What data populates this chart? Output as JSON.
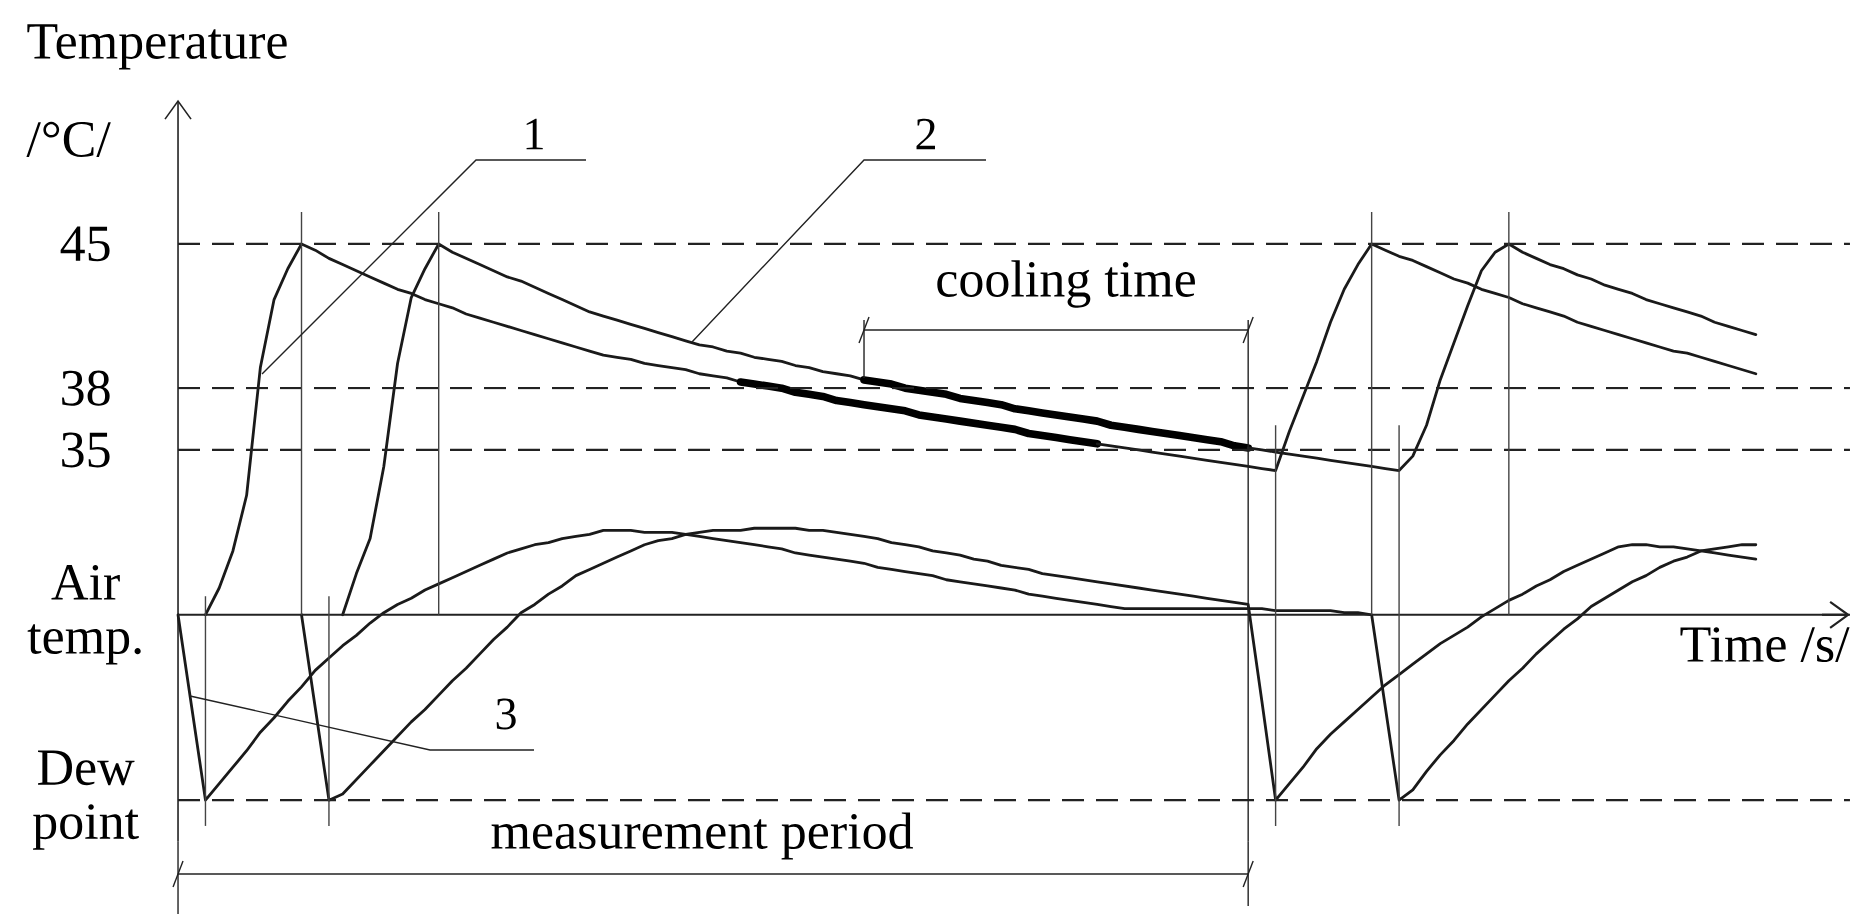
{
  "chart_data": {
    "type": "line",
    "xlabel": "Time /s/",
    "ylabel": "Temperature /°C/",
    "annotations": [
      "1",
      "2",
      "3",
      "cooling time",
      "measurement period"
    ],
    "categories": [
      null,
      null,
      null,
      null,
      null,
      null,
      null,
      null,
      null,
      null,
      null,
      null,
      null,
      null,
      null,
      null,
      null,
      null,
      null,
      null,
      null,
      null,
      null,
      null,
      null,
      null,
      null,
      null,
      null,
      null,
      null,
      null,
      null,
      null,
      null,
      null,
      null,
      null,
      null,
      null,
      null,
      null,
      null,
      null,
      null,
      null,
      null,
      null,
      null,
      null,
      null,
      null,
      null,
      null,
      null,
      null,
      null,
      null,
      null,
      null,
      null,
      null,
      null,
      null,
      null,
      null,
      null,
      null,
      null,
      null,
      null,
      null,
      null,
      null,
      null,
      null,
      null,
      null,
      null,
      null,
      null,
      null,
      null,
      null,
      null,
      null,
      null,
      null,
      null,
      null,
      null,
      null,
      null,
      null,
      null,
      null,
      null,
      null,
      null,
      null,
      null,
      null,
      null,
      null,
      null,
      null,
      null,
      null,
      null,
      null,
      null,
      null,
      null,
      null,
      null,
      null
    ],
    "ylim": [
      16,
      52
    ],
    "yticks": [
      45,
      38,
      35,
      {
        "value": 27,
        "label": "Air temp."
      },
      {
        "value": 18,
        "label": "Dew point"
      }
    ],
    "ref_lines": [
      {
        "axis": "y",
        "value": 45,
        "line_style": "dashed"
      },
      {
        "axis": "y",
        "value": 38,
        "line_style": "dashed"
      },
      {
        "axis": "y",
        "value": 35,
        "line_style": "dashed"
      },
      {
        "axis": "y",
        "value": 27,
        "line_style": "solid"
      },
      {
        "axis": "y",
        "value": 18,
        "line_style": "dashed"
      }
    ],
    "series": [
      {
        "color": "#1a1a1a",
        "values": [
          null,
          null,
          27.0,
          28.3,
          30.1,
          32.8,
          39.0,
          42.3,
          43.8,
          45.0,
          44.7,
          44.3,
          44.0,
          43.7,
          43.4,
          43.1,
          42.8,
          42.6,
          42.3,
          42.1,
          41.9,
          41.6,
          41.4,
          41.2,
          41.0,
          40.8,
          40.6,
          40.4,
          40.2,
          40.0,
          39.8,
          39.6,
          39.5,
          39.4,
          39.2,
          39.1,
          39.0,
          38.9,
          38.7,
          38.6,
          38.5,
          38.3,
          null,
          null,
          null,
          null,
          null,
          null,
          null,
          null,
          null,
          null,
          null,
          null,
          null,
          null,
          null,
          null,
          null,
          null,
          null,
          null,
          null,
          null,
          null,
          null,
          null,
          null,
          null,
          null,
          null,
          null,
          null,
          null,
          null,
          null,
          null,
          null,
          null,
          null,
          null,
          null,
          null,
          null,
          null,
          null,
          null,
          null,
          null,
          null,
          null,
          null,
          null,
          null,
          null,
          null,
          null,
          null,
          null,
          null,
          null,
          null,
          null,
          null,
          null,
          null,
          null,
          null,
          null,
          null,
          null,
          null,
          null,
          null,
          null,
          null
        ]
      },
      {
        "color": "#000000",
        "values": [
          null,
          null,
          null,
          null,
          null,
          null,
          null,
          null,
          null,
          null,
          null,
          null,
          null,
          null,
          null,
          null,
          null,
          null,
          null,
          null,
          null,
          null,
          null,
          null,
          null,
          null,
          null,
          null,
          null,
          null,
          null,
          null,
          null,
          null,
          null,
          null,
          null,
          null,
          null,
          null,
          null,
          38.3,
          38.2,
          38.1,
          38.0,
          37.8,
          37.7,
          37.6,
          37.4,
          37.3,
          37.2,
          37.1,
          37.0,
          36.9,
          36.7,
          36.6,
          36.5,
          36.4,
          36.3,
          36.2,
          36.1,
          36.0,
          35.8,
          35.7,
          35.6,
          35.5,
          35.4,
          35.3,
          null,
          null,
          null,
          null,
          null,
          null,
          null,
          null,
          null,
          null,
          null,
          null,
          null,
          null,
          null,
          null,
          null,
          null,
          null,
          null,
          null,
          null,
          null,
          null,
          null,
          null,
          null,
          null,
          null,
          null,
          null,
          null,
          null,
          null,
          null,
          null,
          null,
          null,
          null,
          null,
          null,
          null,
          null,
          null,
          null,
          null,
          null,
          null
        ]
      },
      {
        "color": "#1a1a1a",
        "values": [
          null,
          null,
          null,
          null,
          null,
          null,
          null,
          null,
          null,
          null,
          null,
          null,
          null,
          null,
          null,
          null,
          null,
          null,
          null,
          null,
          null,
          null,
          null,
          null,
          null,
          null,
          null,
          null,
          null,
          null,
          null,
          null,
          null,
          null,
          null,
          null,
          null,
          null,
          null,
          null,
          null,
          null,
          null,
          null,
          null,
          null,
          null,
          null,
          null,
          null,
          null,
          null,
          null,
          null,
          null,
          null,
          null,
          null,
          null,
          null,
          null,
          null,
          null,
          null,
          null,
          null,
          null,
          35.3,
          35.2,
          35.1,
          35.0,
          34.9,
          34.8,
          34.7,
          34.6,
          34.5,
          34.4,
          34.3,
          34.2,
          34.1,
          34.0,
          35.9,
          37.6,
          39.3,
          41.2,
          42.8,
          44.0,
          45.0,
          44.7,
          44.4,
          44.2,
          43.9,
          43.6,
          43.3,
          43.1,
          42.8,
          42.6,
          42.4,
          42.1,
          41.9,
          41.7,
          41.5,
          41.2,
          41.0,
          40.8,
          40.6,
          40.4,
          40.2,
          40.0,
          39.8,
          39.7,
          39.5,
          39.3,
          39.1,
          38.9,
          38.7
        ]
      },
      {
        "color": "#1a1a1a",
        "values": [
          null,
          null,
          null,
          null,
          null,
          null,
          null,
          null,
          null,
          null,
          null,
          null,
          27.0,
          29.0,
          30.7,
          34.2,
          39.2,
          42.4,
          43.8,
          45.0,
          44.6,
          44.3,
          44.0,
          43.7,
          43.4,
          43.2,
          42.9,
          42.6,
          42.3,
          42.0,
          41.7,
          41.5,
          41.3,
          41.1,
          40.9,
          40.7,
          40.5,
          40.3,
          40.1,
          40.0,
          39.8,
          39.7,
          39.5,
          39.4,
          39.3,
          39.1,
          39.0,
          38.8,
          38.7,
          38.6,
          38.4,
          null,
          null,
          null,
          null,
          null,
          null,
          null,
          null,
          null,
          null,
          null,
          null,
          null,
          null,
          null,
          null,
          null,
          null,
          null,
          null,
          null,
          null,
          null,
          null,
          null,
          null,
          null,
          null,
          null,
          null,
          null,
          null,
          null,
          null,
          null,
          null,
          null,
          null,
          null,
          null,
          null,
          null,
          null,
          null,
          null,
          null,
          null,
          null,
          null,
          null,
          null,
          null,
          null,
          null,
          null,
          null,
          null,
          null,
          null,
          null,
          null,
          null,
          null,
          null,
          null
        ]
      },
      {
        "color": "#000000",
        "values": [
          null,
          null,
          null,
          null,
          null,
          null,
          null,
          null,
          null,
          null,
          null,
          null,
          null,
          null,
          null,
          null,
          null,
          null,
          null,
          null,
          null,
          null,
          null,
          null,
          null,
          null,
          null,
          null,
          null,
          null,
          null,
          null,
          null,
          null,
          null,
          null,
          null,
          null,
          null,
          null,
          null,
          null,
          null,
          null,
          null,
          null,
          null,
          null,
          null,
          null,
          38.4,
          38.3,
          38.2,
          38.0,
          37.9,
          37.8,
          37.7,
          37.5,
          37.4,
          37.3,
          37.2,
          37.0,
          36.9,
          36.8,
          36.7,
          36.6,
          36.5,
          36.4,
          36.2,
          36.1,
          36.0,
          35.9,
          35.8,
          35.7,
          35.6,
          35.5,
          35.4,
          35.2,
          35.1,
          null,
          null,
          null,
          null,
          null,
          null,
          null,
          null,
          null,
          null,
          null,
          null,
          null,
          null,
          null,
          null,
          null,
          null,
          null,
          null,
          null,
          null,
          null,
          null,
          null,
          null,
          null,
          null,
          null,
          null,
          null,
          null,
          null,
          null,
          null,
          null,
          null
        ]
      },
      {
        "color": "#1a1a1a",
        "values": [
          null,
          null,
          null,
          null,
          null,
          null,
          null,
          null,
          null,
          null,
          null,
          null,
          null,
          null,
          null,
          null,
          null,
          null,
          null,
          null,
          null,
          null,
          null,
          null,
          null,
          null,
          null,
          null,
          null,
          null,
          null,
          null,
          null,
          null,
          null,
          null,
          null,
          null,
          null,
          null,
          null,
          null,
          null,
          null,
          null,
          null,
          null,
          null,
          null,
          null,
          null,
          null,
          null,
          null,
          null,
          null,
          null,
          null,
          null,
          null,
          null,
          null,
          null,
          null,
          null,
          null,
          null,
          null,
          null,
          null,
          null,
          null,
          null,
          null,
          null,
          null,
          null,
          null,
          35.1,
          35.0,
          34.9,
          34.8,
          34.7,
          34.6,
          34.5,
          34.4,
          34.3,
          34.2,
          34.1,
          34.0,
          34.7,
          36.2,
          38.4,
          40.2,
          42.0,
          43.7,
          44.6,
          45.0,
          44.6,
          44.3,
          44.0,
          43.8,
          43.5,
          43.3,
          43.0,
          42.8,
          42.6,
          42.3,
          42.1,
          41.9,
          41.7,
          41.5,
          41.2,
          41.0,
          40.8,
          40.6
        ]
      },
      {
        "color": "#1a1a1a",
        "values": [
          27.0,
          22.5,
          18.0,
          18.8,
          19.6,
          20.4,
          21.3,
          22.0,
          22.8,
          23.5,
          24.3,
          24.9,
          25.5,
          26.0,
          26.6,
          27.1,
          27.5,
          27.8,
          28.2,
          28.5,
          28.8,
          29.1,
          29.4,
          29.7,
          30.0,
          30.2,
          30.4,
          30.5,
          30.7,
          30.8,
          30.9,
          31.1,
          31.1,
          31.1,
          31.0,
          31.0,
          31.0,
          30.9,
          30.8,
          30.7,
          30.6,
          30.5,
          30.4,
          30.3,
          30.2,
          30.0,
          29.9,
          29.8,
          29.7,
          29.6,
          29.5,
          29.3,
          29.2,
          29.1,
          29.0,
          28.9,
          28.7,
          28.6,
          28.5,
          28.4,
          28.3,
          28.2,
          28.0,
          27.9,
          27.8,
          27.7,
          27.6,
          27.5,
          27.4,
          27.3,
          27.3,
          27.3,
          27.3,
          27.3,
          27.3,
          27.3,
          27.3,
          27.3,
          27.3,
          27.3,
          27.2,
          27.2,
          27.2,
          27.2,
          27.2,
          27.1,
          27.1,
          27.0,
          22.5,
          18.0,
          18.5,
          19.4,
          20.2,
          20.9,
          21.7,
          22.4,
          23.1,
          23.8,
          24.4,
          25.1,
          25.7,
          26.3,
          26.8,
          27.4,
          27.8,
          28.2,
          28.6,
          28.9,
          29.3,
          29.6,
          29.8,
          30.1,
          30.2,
          30.3,
          30.4,
          30.4
        ]
      },
      {
        "color": "#1a1a1a",
        "values": [
          null,
          null,
          null,
          null,
          null,
          null,
          null,
          null,
          null,
          27.0,
          22.5,
          18.0,
          18.3,
          19.0,
          19.7,
          20.4,
          21.1,
          21.8,
          22.4,
          23.1,
          23.8,
          24.4,
          25.1,
          25.8,
          26.4,
          27.1,
          27.5,
          28.0,
          28.4,
          28.9,
          29.2,
          29.5,
          29.8,
          30.1,
          30.4,
          30.6,
          30.7,
          30.9,
          31.0,
          31.1,
          31.1,
          31.1,
          31.2,
          31.2,
          31.2,
          31.2,
          31.1,
          31.1,
          31.0,
          30.9,
          30.8,
          30.7,
          30.5,
          30.4,
          30.3,
          30.1,
          30.0,
          29.9,
          29.7,
          29.6,
          29.4,
          29.3,
          29.2,
          29.0,
          28.9,
          28.8,
          28.7,
          28.6,
          28.5,
          28.4,
          28.3,
          28.2,
          28.1,
          28.0,
          27.9,
          27.8,
          27.7,
          27.6,
          27.5,
          22.8,
          18.0,
          18.8,
          19.6,
          20.5,
          21.2,
          21.8,
          22.4,
          23.0,
          23.6,
          24.1,
          24.6,
          25.1,
          25.6,
          26.0,
          26.4,
          26.9,
          27.3,
          27.7,
          28.0,
          28.4,
          28.7,
          29.1,
          29.4,
          29.7,
          30.0,
          30.3,
          30.4,
          30.4,
          30.3,
          30.3,
          30.2,
          30.1,
          30.0,
          29.9,
          29.8,
          29.7
        ]
      }
    ]
  }
}
